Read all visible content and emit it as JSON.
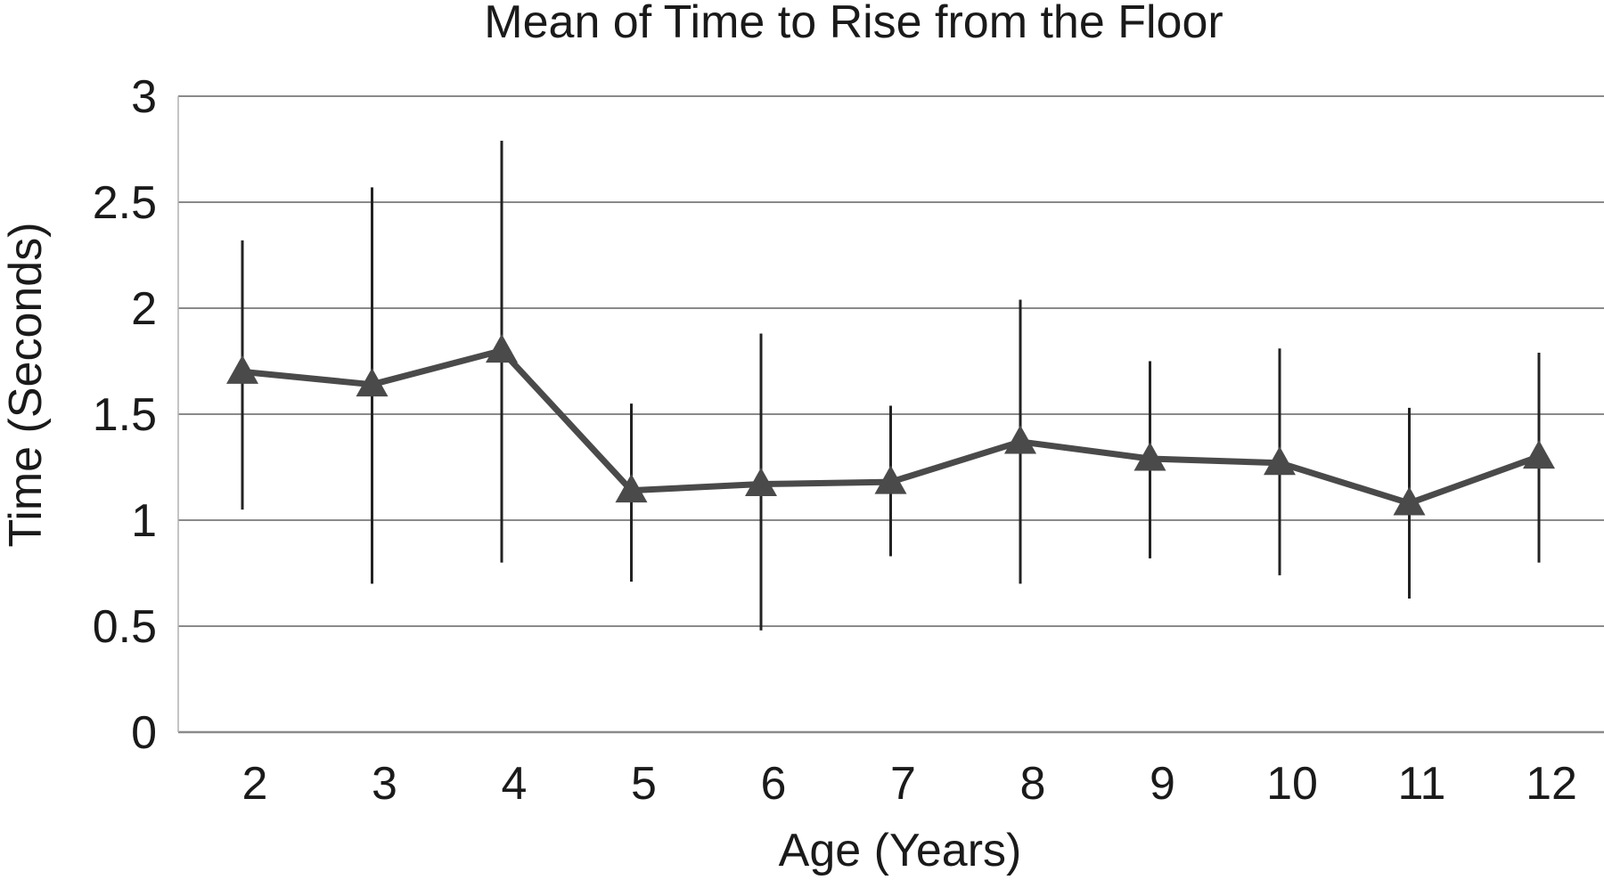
{
  "chart_data": {
    "type": "line",
    "title": "Mean of Time to Rise from the Floor",
    "xlabel": "Age (Years)",
    "ylabel": "Time (Seconds)",
    "categories": [
      "2",
      "3",
      "4",
      "5",
      "6",
      "7",
      "8",
      "9",
      "10",
      "11",
      "12"
    ],
    "ylim": [
      0,
      3
    ],
    "yticks": [
      "0",
      "0.5",
      "1",
      "1.5",
      "2",
      "2.5",
      "3"
    ],
    "grid": true,
    "legend": "none",
    "marker": "triangle",
    "series": [
      {
        "values": [
          1.7,
          1.64,
          1.8,
          1.14,
          1.17,
          1.18,
          1.37,
          1.29,
          1.27,
          1.08,
          1.3
        ],
        "error_low": [
          1.05,
          0.7,
          0.8,
          0.71,
          0.48,
          0.83,
          0.7,
          0.82,
          0.74,
          0.63,
          0.8
        ],
        "error_high": [
          2.32,
          2.57,
          2.79,
          1.55,
          1.88,
          1.54,
          2.04,
          1.75,
          1.81,
          1.53,
          1.79
        ],
        "color": "#4a4a4a"
      }
    ]
  }
}
